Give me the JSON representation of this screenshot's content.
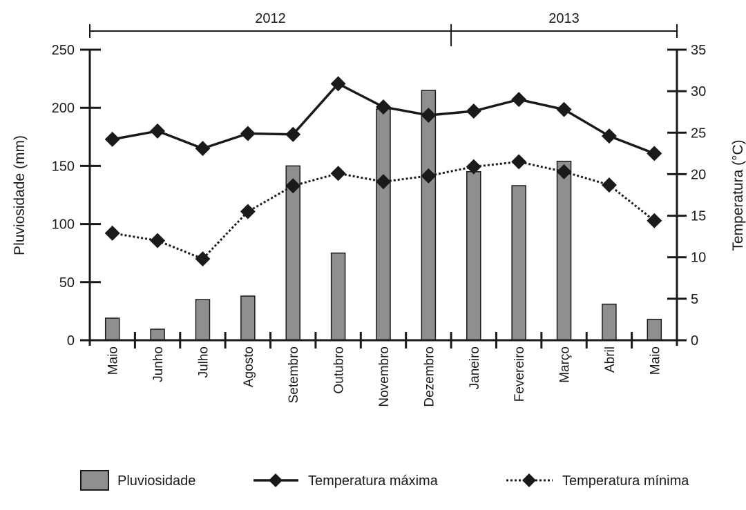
{
  "chart_data": {
    "type": "bar+line",
    "categories": [
      "Maio",
      "Junho",
      "Julho",
      "Agosto",
      "Setembro",
      "Outubro",
      "Novembro",
      "Dezembro",
      "Janeiro",
      "Fevereiro",
      "Março",
      "Abril",
      "Maio"
    ],
    "year_groups": [
      {
        "label": "2012",
        "from": 0,
        "to": 7
      },
      {
        "label": "2013",
        "from": 8,
        "to": 12
      }
    ],
    "series": [
      {
        "name": "Pluviosidade",
        "type": "bar",
        "axis": "left",
        "values": [
          19,
          9.5,
          35,
          38,
          150,
          75,
          199,
          215,
          145,
          133,
          154,
          31,
          18
        ]
      },
      {
        "name": "Temperatura máxima",
        "type": "line",
        "style": "solid",
        "axis": "right",
        "values": [
          24.2,
          25.2,
          23.1,
          24.9,
          24.8,
          30.9,
          28.1,
          27.1,
          27.6,
          29.0,
          27.8,
          24.6,
          22.5
        ]
      },
      {
        "name": "Temperatura mínima",
        "type": "line",
        "style": "dotted",
        "axis": "right",
        "values": [
          12.9,
          12.0,
          9.8,
          15.5,
          18.6,
          20.1,
          19.1,
          19.8,
          20.9,
          21.5,
          20.3,
          18.7,
          14.4
        ]
      }
    ],
    "ylabel": "Pluviosidade (mm)",
    "ylim": [
      0,
      250
    ],
    "yticks": [
      0,
      50,
      100,
      150,
      200,
      250
    ],
    "y2label": "Temperatura (°C)",
    "y2lim": [
      0,
      35
    ],
    "y2ticks": [
      0,
      5,
      10,
      15,
      20,
      25,
      30,
      35
    ],
    "legend_position": "bottom",
    "grid": false,
    "colors": {
      "bar": "#8f8f8f",
      "line": "#1a1a1a"
    }
  }
}
